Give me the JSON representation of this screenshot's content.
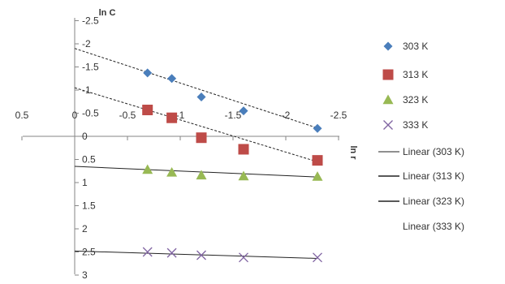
{
  "chart_data": {
    "type": "scatter",
    "title": "",
    "xlabel": "ln r",
    "ylabel": "ln C",
    "xlim": [
      0.5,
      -2.5
    ],
    "ylim": [
      -2.5,
      3
    ],
    "x_reversed": true,
    "y_reversed": true,
    "x_ticks": [
      "0.5",
      "0",
      "-0.5",
      "-1",
      "-1.5",
      "-2",
      "-2.5"
    ],
    "x_tick_values": [
      0.5,
      0,
      -0.5,
      -1,
      -1.5,
      -2,
      -2.5
    ],
    "y_ticks": [
      "-2.5",
      "-2",
      "-1.5",
      "-1",
      "-0.5",
      "0",
      "0.5",
      "1",
      "1.5",
      "2",
      "2.5",
      "3"
    ],
    "y_tick_values": [
      -2.5,
      -2,
      -1.5,
      -1,
      -0.5,
      0,
      0.5,
      1,
      1.5,
      2,
      2.5,
      3
    ],
    "grid": false,
    "legend_position": "right",
    "series": [
      {
        "name": "303 K",
        "marker": "diamond",
        "color": "#4a7ebb",
        "x": [
          -0.69,
          -0.92,
          -1.2,
          -1.6,
          -2.3
        ],
        "y": [
          -1.37,
          -1.25,
          -0.85,
          -0.55,
          -0.17
        ]
      },
      {
        "name": "313 K",
        "marker": "square",
        "color": "#be4b48",
        "x": [
          -0.69,
          -0.92,
          -1.2,
          -1.6,
          -2.3
        ],
        "y": [
          -0.57,
          -0.4,
          0.03,
          0.28,
          0.52
        ]
      },
      {
        "name": "323 K",
        "marker": "triangle",
        "color": "#98b954",
        "x": [
          -0.69,
          -0.92,
          -1.2,
          -1.6,
          -2.3
        ],
        "y": [
          0.72,
          0.78,
          0.84,
          0.86,
          0.87
        ]
      },
      {
        "name": "333 K",
        "marker": "x",
        "color": "#8064a2",
        "x": [
          -0.69,
          -0.92,
          -1.2,
          -1.6,
          -2.3
        ],
        "y": [
          2.5,
          2.52,
          2.57,
          2.62,
          2.62
        ]
      }
    ],
    "trendlines": [
      {
        "name": "Linear (303 K)",
        "style": "dashed",
        "x": [
          0,
          -2.3
        ],
        "y": [
          -1.9,
          -0.18
        ]
      },
      {
        "name": "Linear (313 K)",
        "style": "dashed",
        "x": [
          0,
          -2.3
        ],
        "y": [
          -1.05,
          0.55
        ]
      },
      {
        "name": "Linear (323 K)",
        "style": "solid",
        "x": [
          0,
          -2.3
        ],
        "y": [
          0.65,
          0.88
        ]
      },
      {
        "name": "Linear (333 K)",
        "style": "solid",
        "x": [
          0,
          -2.3
        ],
        "y": [
          2.48,
          2.64
        ]
      }
    ]
  }
}
